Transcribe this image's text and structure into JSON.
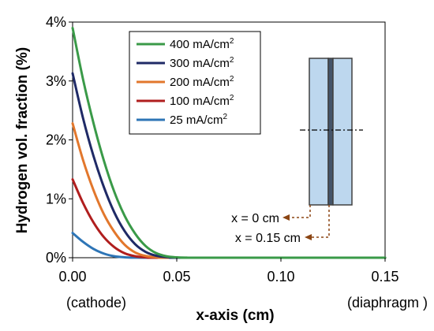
{
  "chart_data": {
    "type": "line",
    "title": "",
    "xlabel": "x-axis (cm)",
    "ylabel": "Hydrogen vol. fraction (%)",
    "xlim": [
      0,
      0.15
    ],
    "ylim": [
      0,
      4
    ],
    "x_ticks": [
      {
        "value": 0,
        "label": "0.00"
      },
      {
        "value": 0.05,
        "label": "0.05"
      },
      {
        "value": 0.1,
        "label": "0.10"
      },
      {
        "value": 0.15,
        "label": "0.15"
      }
    ],
    "y_ticks": [
      {
        "value": 0,
        "label": "0%"
      },
      {
        "value": 1,
        "label": "1%"
      },
      {
        "value": 2,
        "label": "2%"
      },
      {
        "value": 3,
        "label": "3%"
      },
      {
        "value": 4,
        "label": "4%"
      }
    ],
    "x_end_labels": {
      "left": "(cathode)",
      "right": "(diaphragm )"
    },
    "grid": false,
    "legend_position": "top-center",
    "series": [
      {
        "name": "400 mA/cm",
        "sup": "2",
        "color": "#3a9a48",
        "x": [
          0,
          0.005,
          0.01,
          0.015,
          0.02,
          0.025,
          0.03,
          0.035,
          0.04,
          0.045,
          0.05,
          0.055,
          0.06,
          0.15
        ],
        "y": [
          3.9,
          3.03,
          2.29,
          1.65,
          1.12,
          0.71,
          0.41,
          0.2,
          0.08,
          0.025,
          0.006,
          0.001,
          0,
          0
        ]
      },
      {
        "name": "300 mA/cm",
        "sup": "2",
        "color": "#1f2a66",
        "x": [
          0,
          0.005,
          0.01,
          0.015,
          0.02,
          0.025,
          0.03,
          0.035,
          0.04,
          0.045,
          0.05,
          0.055,
          0.15
        ],
        "y": [
          3.13,
          2.37,
          1.73,
          1.2,
          0.77,
          0.45,
          0.23,
          0.1,
          0.035,
          0.01,
          0.002,
          0,
          0
        ]
      },
      {
        "name": "200 mA/cm",
        "sup": "2",
        "color": "#e2772c",
        "x": [
          0,
          0.005,
          0.01,
          0.015,
          0.02,
          0.025,
          0.03,
          0.035,
          0.04,
          0.045,
          0.05,
          0.15
        ],
        "y": [
          2.28,
          1.66,
          1.15,
          0.74,
          0.44,
          0.22,
          0.09,
          0.03,
          0.008,
          0.001,
          0,
          0
        ]
      },
      {
        "name": "100 mA/cm",
        "sup": "2",
        "color": "#b01e1e",
        "x": [
          0,
          0.005,
          0.01,
          0.015,
          0.02,
          0.025,
          0.03,
          0.035,
          0.04,
          0.045,
          0.15
        ],
        "y": [
          1.33,
          0.93,
          0.6,
          0.35,
          0.18,
          0.075,
          0.025,
          0.006,
          0.001,
          0,
          0
        ]
      },
      {
        "name": "25 mA/cm",
        "sup": "2",
        "color": "#2e75b6",
        "x": [
          0,
          0.005,
          0.01,
          0.015,
          0.02,
          0.025,
          0.03,
          0.035,
          0.04,
          0.15
        ],
        "y": [
          0.42,
          0.27,
          0.15,
          0.07,
          0.025,
          0.007,
          0.001,
          0,
          0,
          0
        ]
      }
    ],
    "annotations": [
      {
        "text": "x = 0 cm",
        "arrow": "dashed brown arrow from the left edge of the cell"
      },
      {
        "text": "x = 0.15 cm",
        "arrow": "dashed brown arrow from the diaphragm"
      }
    ],
    "inset_colors": {
      "electrode_fill": "#bdd7ee",
      "diaphragm_fill": "#44546a",
      "outline": "#404040",
      "arrow": "#8b4513"
    }
  }
}
